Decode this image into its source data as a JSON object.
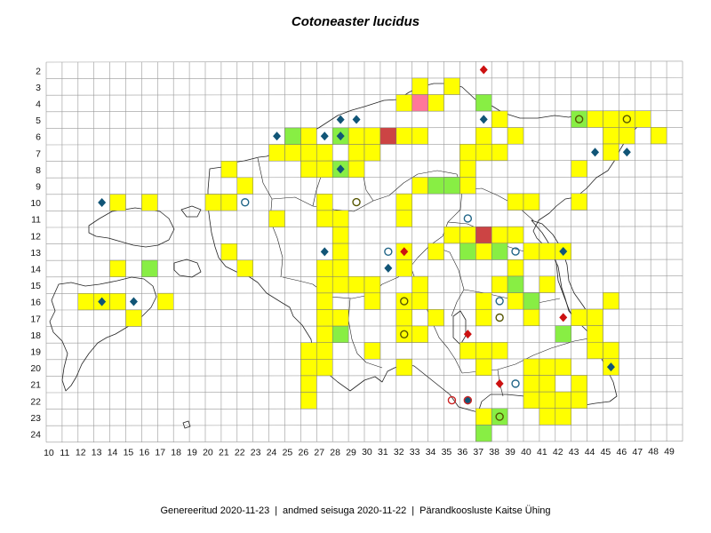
{
  "title": "Cotoneaster lucidus",
  "footer": {
    "generated": "Genereeritud 2020-11-23",
    "data_state": "andmed seisuga 2020-11-22",
    "organization": "Pärandkoosluste Kaitse Ühing"
  },
  "colors": {
    "yellow": "#ffff00",
    "green": "#88ee44",
    "red": "#cc4444",
    "pink": "#ff7799",
    "diamond_blue": "#115577",
    "diamond_red": "#cc1111",
    "circle_olive": "#555500",
    "circle_blue": "#226688",
    "circle_red": "#cc2222",
    "grid": "#999999",
    "outline": "#222222"
  },
  "grid": {
    "x_labels": [
      "10",
      "11",
      "12",
      "13",
      "14",
      "15",
      "16",
      "17",
      "18",
      "19",
      "20",
      "21",
      "22",
      "23",
      "24",
      "25",
      "26",
      "27",
      "28",
      "29",
      "30",
      "31",
      "32",
      "33",
      "34",
      "35",
      "36",
      "37",
      "38",
      "39",
      "40",
      "41",
      "42",
      "43",
      "44",
      "45",
      "46",
      "47",
      "48",
      "49"
    ],
    "y_labels": [
      "2",
      "3",
      "4",
      "5",
      "6",
      "7",
      "8",
      "9",
      "10",
      "11",
      "12",
      "13",
      "14",
      "15",
      "16",
      "17",
      "18",
      "19",
      "20",
      "21",
      "22",
      "23",
      "24"
    ]
  },
  "occupied_cells": {
    "yellow": [
      [
        33,
        3
      ],
      [
        35,
        3
      ],
      [
        32,
        4
      ],
      [
        34,
        4
      ],
      [
        38,
        5
      ],
      [
        43,
        5
      ],
      [
        44,
        5
      ],
      [
        45,
        5
      ],
      [
        46,
        5
      ],
      [
        47,
        5
      ],
      [
        25,
        6
      ],
      [
        26,
        6
      ],
      [
        29,
        6
      ],
      [
        30,
        6
      ],
      [
        32,
        6
      ],
      [
        33,
        6
      ],
      [
        37,
        6
      ],
      [
        39,
        6
      ],
      [
        45,
        6
      ],
      [
        46,
        6
      ],
      [
        48,
        6
      ],
      [
        24,
        7
      ],
      [
        25,
        7
      ],
      [
        26,
        7
      ],
      [
        27,
        7
      ],
      [
        29,
        7
      ],
      [
        30,
        7
      ],
      [
        36,
        7
      ],
      [
        37,
        7
      ],
      [
        38,
        7
      ],
      [
        45,
        7
      ],
      [
        21,
        8
      ],
      [
        26,
        8
      ],
      [
        27,
        8
      ],
      [
        29,
        8
      ],
      [
        36,
        8
      ],
      [
        43,
        8
      ],
      [
        22,
        9
      ],
      [
        33,
        9
      ],
      [
        35,
        9
      ],
      [
        36,
        9
      ],
      [
        14,
        10
      ],
      [
        16,
        10
      ],
      [
        20,
        10
      ],
      [
        21,
        10
      ],
      [
        27,
        10
      ],
      [
        32,
        10
      ],
      [
        39,
        10
      ],
      [
        40,
        10
      ],
      [
        43,
        10
      ],
      [
        24,
        11
      ],
      [
        27,
        11
      ],
      [
        28,
        11
      ],
      [
        32,
        11
      ],
      [
        28,
        12
      ],
      [
        35,
        12
      ],
      [
        36,
        12
      ],
      [
        38,
        12
      ],
      [
        39,
        12
      ],
      [
        21,
        13
      ],
      [
        28,
        13
      ],
      [
        32,
        13
      ],
      [
        34,
        13
      ],
      [
        37,
        13
      ],
      [
        40,
        13
      ],
      [
        41,
        13
      ],
      [
        42,
        13
      ],
      [
        14,
        14
      ],
      [
        22,
        14
      ],
      [
        27,
        14
      ],
      [
        28,
        14
      ],
      [
        32,
        14
      ],
      [
        39,
        14
      ],
      [
        27,
        15
      ],
      [
        28,
        15
      ],
      [
        29,
        15
      ],
      [
        30,
        15
      ],
      [
        33,
        15
      ],
      [
        38,
        15
      ],
      [
        41,
        15
      ],
      [
        12,
        16
      ],
      [
        13,
        16
      ],
      [
        14,
        16
      ],
      [
        17,
        16
      ],
      [
        27,
        16
      ],
      [
        30,
        16
      ],
      [
        32,
        16
      ],
      [
        33,
        16
      ],
      [
        37,
        16
      ],
      [
        39,
        16
      ],
      [
        40,
        16
      ],
      [
        45,
        16
      ],
      [
        15,
        17
      ],
      [
        27,
        17
      ],
      [
        28,
        17
      ],
      [
        32,
        17
      ],
      [
        34,
        17
      ],
      [
        37,
        17
      ],
      [
        40,
        17
      ],
      [
        43,
        17
      ],
      [
        44,
        17
      ],
      [
        27,
        18
      ],
      [
        32,
        18
      ],
      [
        33,
        18
      ],
      [
        44,
        18
      ],
      [
        26,
        19
      ],
      [
        27,
        19
      ],
      [
        30,
        19
      ],
      [
        36,
        19
      ],
      [
        37,
        19
      ],
      [
        38,
        19
      ],
      [
        44,
        19
      ],
      [
        45,
        19
      ],
      [
        26,
        20
      ],
      [
        27,
        20
      ],
      [
        32,
        20
      ],
      [
        37,
        20
      ],
      [
        40,
        20
      ],
      [
        41,
        20
      ],
      [
        42,
        20
      ],
      [
        45,
        20
      ],
      [
        26,
        21
      ],
      [
        40,
        21
      ],
      [
        41,
        21
      ],
      [
        43,
        21
      ],
      [
        26,
        22
      ],
      [
        40,
        22
      ],
      [
        41,
        22
      ],
      [
        42,
        22
      ],
      [
        43,
        22
      ],
      [
        37,
        23
      ],
      [
        38,
        23
      ],
      [
        41,
        23
      ],
      [
        42,
        23
      ]
    ],
    "green": [
      [
        37,
        4
      ],
      [
        43,
        5
      ],
      [
        25,
        6
      ],
      [
        28,
        6
      ],
      [
        28,
        8
      ],
      [
        34,
        9
      ],
      [
        35,
        9
      ],
      [
        16,
        14
      ],
      [
        36,
        13
      ],
      [
        38,
        13
      ],
      [
        40,
        16
      ],
      [
        28,
        18
      ],
      [
        42,
        18
      ],
      [
        39,
        15
      ],
      [
        38,
        23
      ],
      [
        37,
        24
      ]
    ],
    "red": [
      [
        31,
        6
      ],
      [
        37,
        12
      ]
    ],
    "pink": [
      [
        33,
        4
      ]
    ]
  },
  "markers": {
    "diamond_blue": [
      [
        37,
        5
      ],
      [
        28,
        5
      ],
      [
        29,
        5
      ],
      [
        24,
        6
      ],
      [
        27,
        6
      ],
      [
        28,
        6
      ],
      [
        44,
        7
      ],
      [
        46,
        7
      ],
      [
        28,
        8
      ],
      [
        13,
        10
      ],
      [
        42,
        13
      ],
      [
        27,
        13
      ],
      [
        31,
        14
      ],
      [
        13,
        16
      ],
      [
        15,
        16
      ],
      [
        45,
        20
      ],
      [
        36,
        22
      ]
    ],
    "diamond_red": [
      [
        37,
        2
      ],
      [
        32,
        13
      ],
      [
        42,
        17
      ],
      [
        36,
        18
      ],
      [
        38,
        21
      ]
    ],
    "circle_olive": [
      [
        43,
        5
      ],
      [
        46,
        5
      ],
      [
        29,
        10
      ],
      [
        32,
        16
      ],
      [
        38,
        17
      ],
      [
        32,
        18
      ],
      [
        38,
        23
      ]
    ],
    "circle_blue": [
      [
        22,
        10
      ],
      [
        36,
        11
      ],
      [
        31,
        13
      ],
      [
        39,
        13
      ],
      [
        38,
        16
      ],
      [
        39,
        21
      ]
    ],
    "circle_red": [
      [
        35,
        22
      ],
      [
        36,
        22
      ]
    ]
  }
}
